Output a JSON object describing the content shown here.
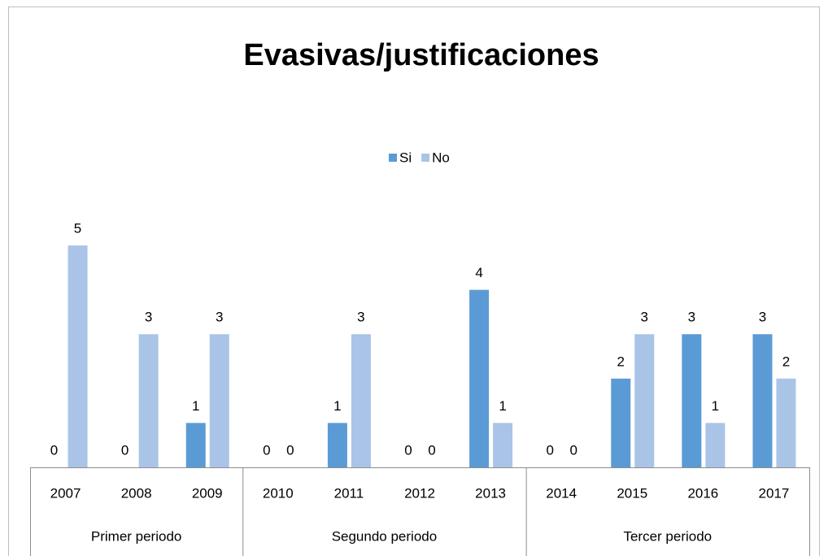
{
  "chart_data": {
    "type": "bar",
    "title": "Evasivas/justificaciones",
    "groups": [
      {
        "name": "Primer periodo",
        "categories": [
          "2007",
          "2008",
          "2009"
        ]
      },
      {
        "name": "Segundo periodo",
        "categories": [
          "2010",
          "2011",
          "2012",
          "2013"
        ]
      },
      {
        "name": "Tercer periodo",
        "categories": [
          "2014",
          "2015",
          "2016",
          "2017"
        ]
      }
    ],
    "series": [
      {
        "name": "Si",
        "color": "#5b9bd5",
        "values": [
          0,
          0,
          1,
          0,
          1,
          0,
          4,
          0,
          2,
          3,
          3
        ]
      },
      {
        "name": "No",
        "color": "#a9c4e6",
        "values": [
          5,
          3,
          3,
          0,
          3,
          0,
          1,
          0,
          3,
          1,
          2
        ]
      }
    ],
    "ylim": [
      0,
      5
    ],
    "legend": "top",
    "data_labels": true
  }
}
